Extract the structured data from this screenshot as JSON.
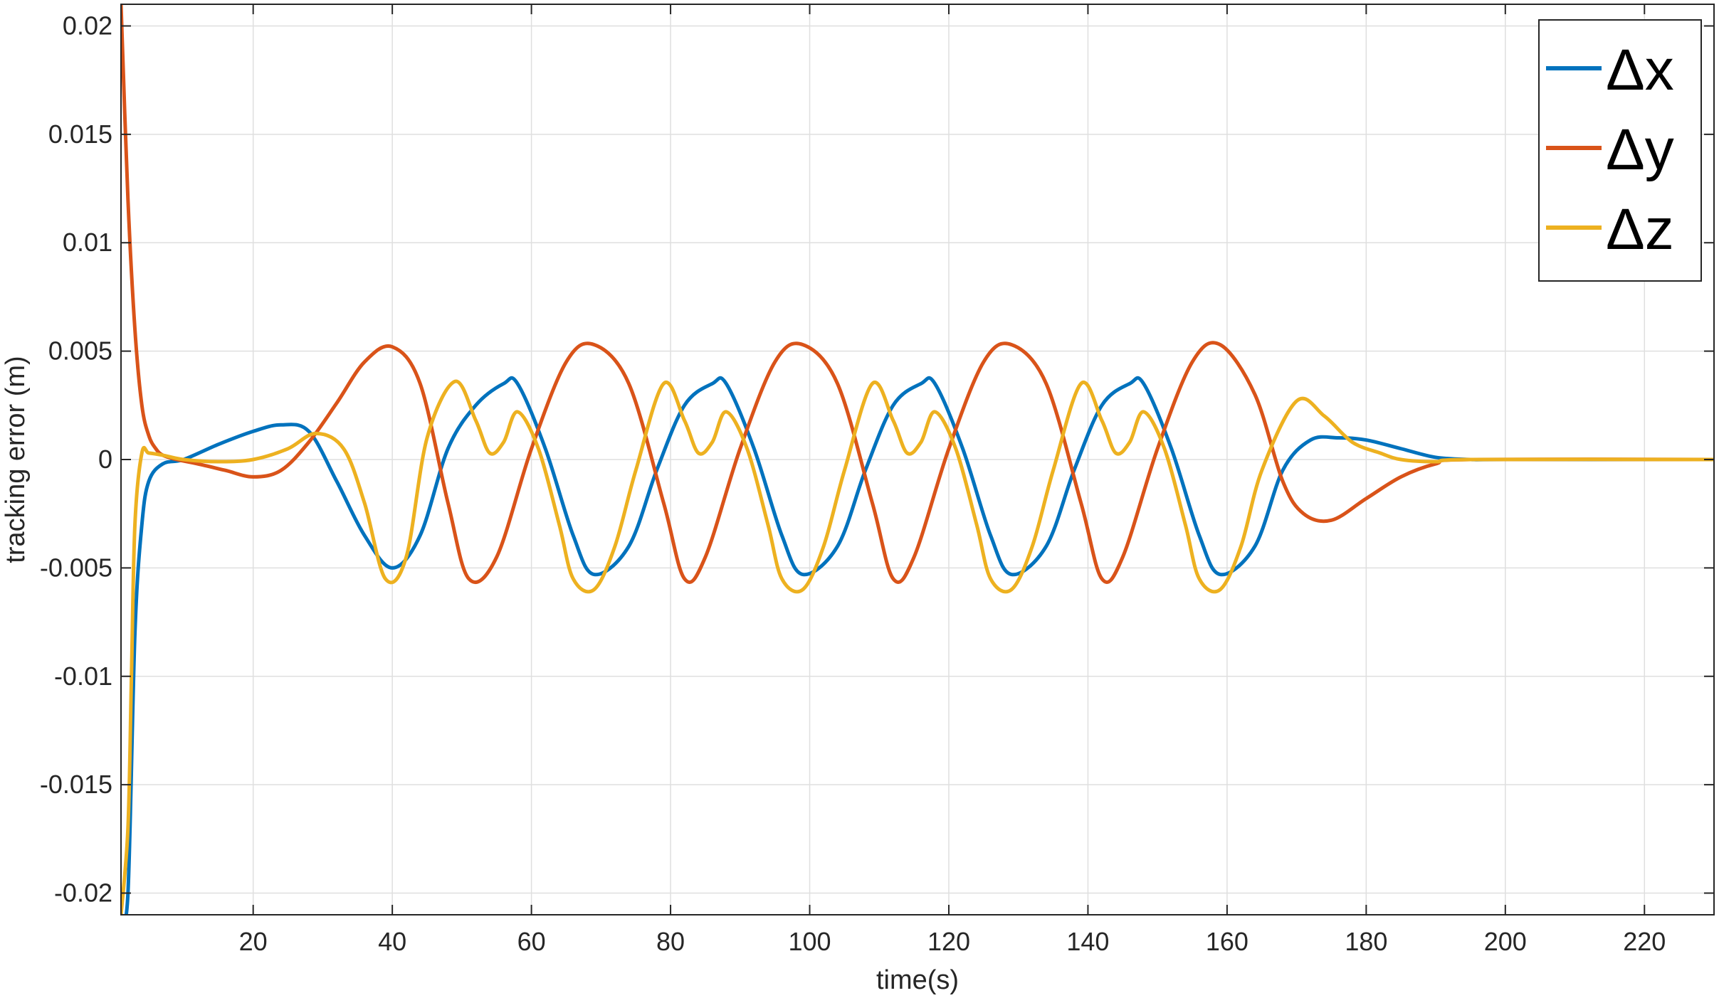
{
  "chart_data": {
    "type": "line",
    "title": "",
    "xlabel": "time(s)",
    "ylabel": "tracking error (m)",
    "xlim": [
      1,
      230
    ],
    "ylim": [
      -0.021,
      0.021
    ],
    "xticks": [
      20,
      40,
      60,
      80,
      100,
      120,
      140,
      160,
      180,
      200,
      220
    ],
    "xtick_labels": [
      "20",
      "40",
      "60",
      "80",
      "100",
      "120",
      "140",
      "160",
      "180",
      "200",
      "220"
    ],
    "yticks": [
      -0.02,
      -0.015,
      -0.01,
      -0.005,
      0,
      0.005,
      0.01,
      0.015,
      0.02
    ],
    "ytick_labels": [
      "-0.02",
      "-0.015",
      "-0.01",
      "-0.005",
      "0",
      "0.005",
      "0.01",
      "0.015",
      "0.02"
    ],
    "grid": true,
    "legend_position": "top-right",
    "series": [
      {
        "name": "Δx",
        "color": "#0072BD",
        "x": [
          1,
          2,
          3,
          4,
          5,
          7,
          10,
          15,
          20,
          24,
          28,
          32,
          36,
          40,
          44,
          48,
          52,
          56,
          58,
          62,
          66,
          69,
          74,
          78,
          82,
          86,
          88,
          92,
          96,
          99,
          104,
          108,
          112,
          116,
          118,
          122,
          126,
          129,
          134,
          138,
          142,
          146,
          148,
          152,
          156,
          159,
          164,
          168,
          172,
          176,
          180,
          185,
          190,
          195,
          200,
          230
        ],
        "y": [
          -0.021,
          -0.02,
          -0.008,
          -0.003,
          -0.001,
          -0.0002,
          0.0,
          0.0007,
          0.0013,
          0.0016,
          0.0013,
          -0.001,
          -0.0035,
          -0.005,
          -0.0035,
          0.0005,
          0.0025,
          0.0035,
          0.0035,
          0.0005,
          -0.0035,
          -0.0053,
          -0.004,
          -0.0005,
          0.0025,
          0.0035,
          0.0035,
          0.0005,
          -0.0035,
          -0.0053,
          -0.004,
          -0.0005,
          0.0025,
          0.0035,
          0.0035,
          0.0005,
          -0.0035,
          -0.0053,
          -0.004,
          -0.0005,
          0.0025,
          0.0035,
          0.0035,
          0.0005,
          -0.0035,
          -0.0053,
          -0.004,
          -0.0005,
          0.0009,
          0.001,
          0.0009,
          0.0005,
          0.0001,
          0.0,
          0.0,
          0.0
        ]
      },
      {
        "name": "Δy",
        "color": "#D95319",
        "x": [
          1,
          2,
          3,
          4,
          5,
          6,
          7,
          9,
          12,
          16,
          20,
          24,
          28,
          32,
          36,
          40,
          44,
          48,
          51,
          55,
          60,
          65,
          69,
          74,
          79,
          82,
          85,
          90,
          95,
          99,
          104,
          109,
          112,
          115,
          120,
          125,
          129,
          134,
          139,
          142,
          145,
          150,
          155,
          159,
          164,
          168,
          171,
          175,
          180,
          185,
          190,
          195,
          230
        ],
        "y": [
          0.021,
          0.012,
          0.006,
          0.0025,
          0.0011,
          0.0005,
          0.0002,
          0.0,
          -0.0002,
          -0.0005,
          -0.0008,
          -0.0005,
          0.0008,
          0.0026,
          0.0045,
          0.0052,
          0.0035,
          -0.002,
          -0.0055,
          -0.0045,
          0.0005,
          0.0045,
          0.0053,
          0.0035,
          -0.002,
          -0.0055,
          -0.0045,
          0.0005,
          0.0045,
          0.0053,
          0.0035,
          -0.002,
          -0.0055,
          -0.0045,
          0.0005,
          0.0045,
          0.0053,
          0.0035,
          -0.002,
          -0.0055,
          -0.0045,
          0.0005,
          0.0045,
          0.0053,
          0.003,
          -0.001,
          -0.0025,
          -0.0028,
          -0.0018,
          -0.0008,
          -0.0002,
          0.0,
          0.0
        ]
      },
      {
        "name": "Δz",
        "color": "#EDB120",
        "x": [
          1,
          2,
          2.5,
          3,
          4,
          5,
          7,
          10,
          15,
          20,
          25,
          29,
          33,
          36,
          39,
          42,
          45,
          49,
          52,
          54,
          56,
          58,
          61,
          64,
          66,
          69,
          72,
          75,
          79,
          82,
          84,
          86,
          88,
          91,
          94,
          96,
          99,
          102,
          105,
          109,
          112,
          114,
          116,
          118,
          121,
          124,
          126,
          129,
          132,
          135,
          139,
          142,
          144,
          146,
          148,
          151,
          154,
          156,
          159,
          162,
          165,
          170,
          174,
          178,
          182,
          185,
          190,
          195,
          230
        ],
        "y": [
          -0.021,
          -0.017,
          -0.01,
          -0.003,
          0.0003,
          0.0003,
          0.0002,
          0.0,
          -0.0001,
          0.0,
          0.0005,
          0.0012,
          0.0005,
          -0.002,
          -0.0055,
          -0.0045,
          0.001,
          0.0036,
          0.0018,
          0.0003,
          0.0008,
          0.0022,
          0.0005,
          -0.003,
          -0.0055,
          -0.006,
          -0.004,
          -0.0005,
          0.0035,
          0.0018,
          0.0003,
          0.0008,
          0.0022,
          0.0005,
          -0.003,
          -0.0055,
          -0.006,
          -0.004,
          -0.0005,
          0.0035,
          0.0018,
          0.0003,
          0.0008,
          0.0022,
          0.0005,
          -0.003,
          -0.0055,
          -0.006,
          -0.004,
          -0.0005,
          0.0035,
          0.0018,
          0.0003,
          0.0008,
          0.0022,
          0.0005,
          -0.003,
          -0.0055,
          -0.006,
          -0.004,
          -0.0005,
          0.0027,
          0.002,
          0.0008,
          0.0003,
          0.0,
          -0.0001,
          0.0,
          0.0
        ]
      }
    ]
  }
}
